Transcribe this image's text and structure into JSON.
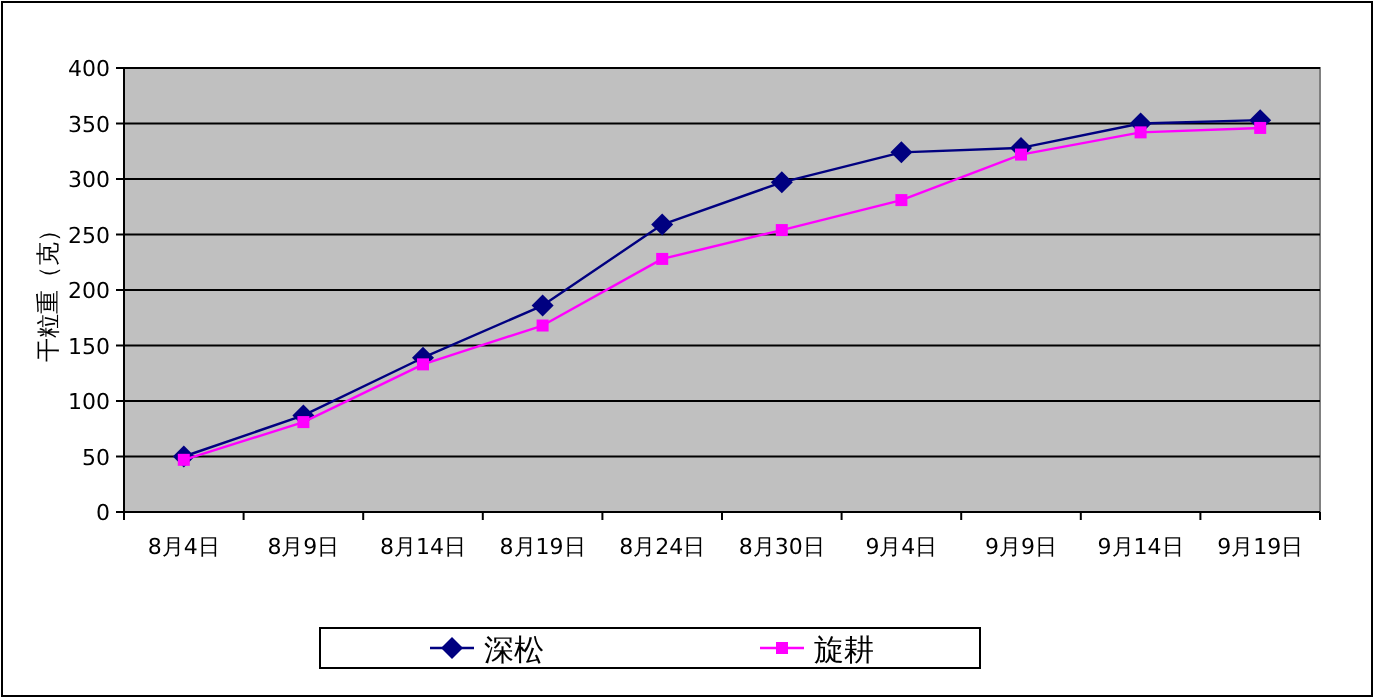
{
  "chart_data": {
    "type": "line",
    "ylabel": "干粒重（克）",
    "categories": [
      "8月4日",
      "8月9日",
      "8月14日",
      "8月19日",
      "8月24日",
      "8月30日",
      "9月4日",
      "9月9日",
      "9月14日",
      "9月19日"
    ],
    "series": [
      {
        "name": "深松",
        "color": "#000080",
        "marker": "diamond",
        "values": [
          50,
          87,
          139,
          186,
          259,
          297,
          324,
          328,
          350,
          353
        ]
      },
      {
        "name": "旋耕",
        "color": "#ff00ff",
        "marker": "square",
        "values": [
          47,
          81,
          133,
          168,
          228,
          254,
          281,
          322,
          342,
          346
        ]
      }
    ],
    "ylim": [
      0,
      400
    ],
    "yticks": [
      0,
      50,
      100,
      150,
      200,
      250,
      300,
      350,
      400
    ],
    "grid": "y",
    "legend": "bottom",
    "line_style": "solid"
  }
}
